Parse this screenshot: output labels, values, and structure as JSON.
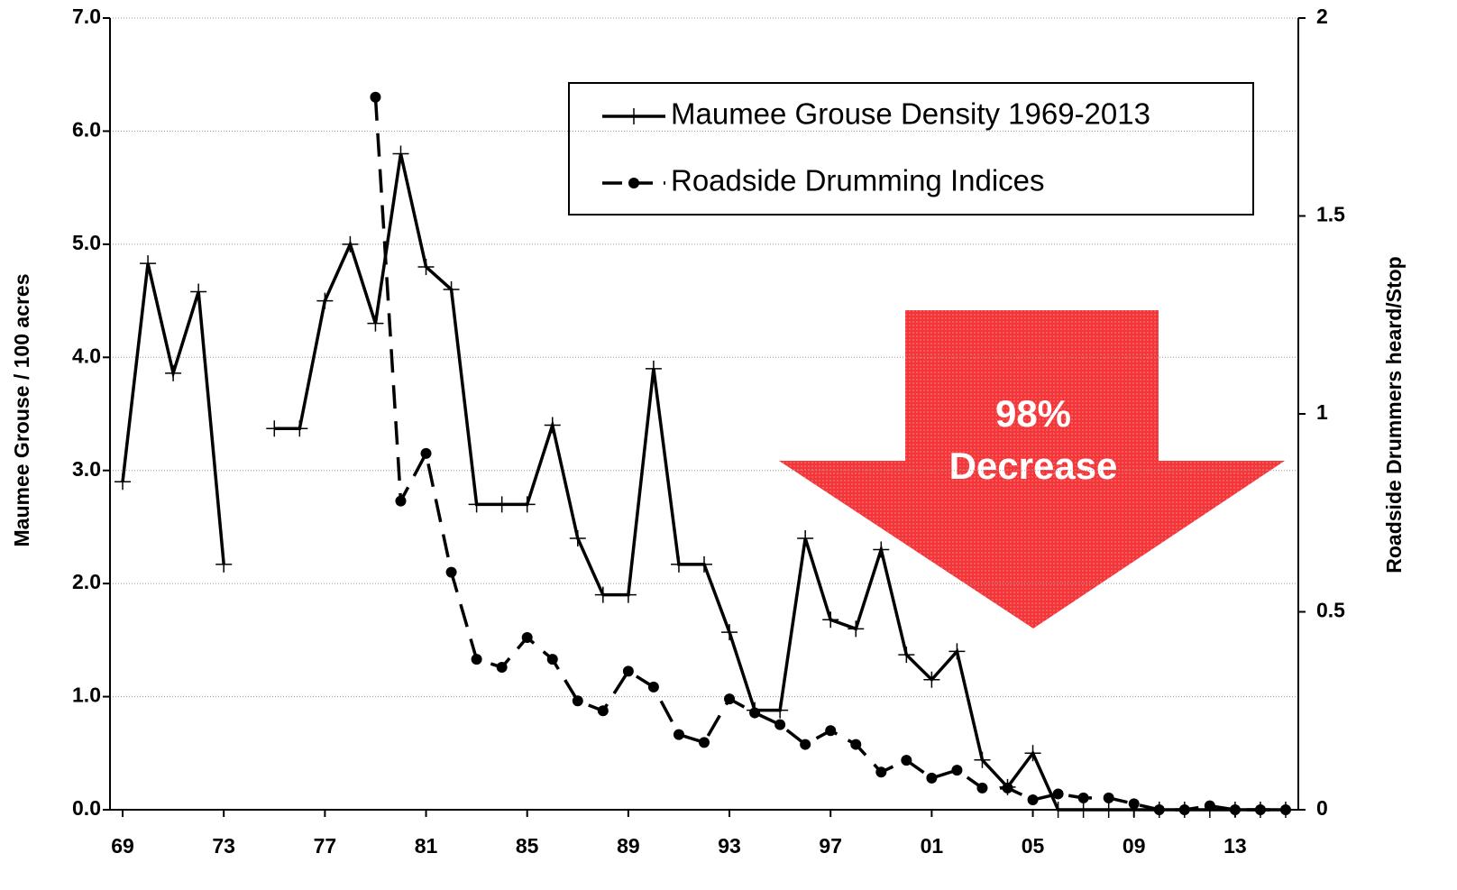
{
  "chart_data": {
    "type": "line",
    "x": [
      1969,
      1970,
      1971,
      1972,
      1973,
      1974,
      1975,
      1976,
      1977,
      1978,
      1979,
      1980,
      1981,
      1982,
      1983,
      1984,
      1985,
      1986,
      1987,
      1988,
      1989,
      1990,
      1991,
      1992,
      1993,
      1994,
      1995,
      1996,
      1997,
      1998,
      1999,
      2000,
      2001,
      2002,
      2003,
      2004,
      2005,
      2006,
      2007,
      2008,
      2009,
      2010,
      2011,
      2012,
      2013,
      2014,
      2015
    ],
    "series": [
      {
        "name": "Maumee Grouse Density 1969-2013",
        "color": "#000000",
        "style": "solid",
        "marker": "plus",
        "values": [
          2.9,
          4.83,
          3.86,
          4.58,
          2.17,
          null,
          3.37,
          3.37,
          4.5,
          5.0,
          4.3,
          5.8,
          4.8,
          4.6,
          2.7,
          2.7,
          2.7,
          3.4,
          2.4,
          1.9,
          1.9,
          3.9,
          2.17,
          2.17,
          1.57,
          0.88,
          0.88,
          2.4,
          1.68,
          1.6,
          2.3,
          1.37,
          1.15,
          1.4,
          0.44,
          0.2,
          0.5,
          0,
          0,
          0,
          0,
          0,
          0,
          0,
          0,
          0,
          0
        ]
      },
      {
        "name": "Roadside Drumming Indices",
        "color": "#000000",
        "style": "dashed",
        "marker": "circle",
        "axis": "y2",
        "values": [
          null,
          null,
          null,
          null,
          null,
          null,
          null,
          null,
          null,
          null,
          1.8,
          0.78,
          0.9,
          0.6,
          0.38,
          0.36,
          0.435,
          0.38,
          0.275,
          0.25,
          0.35,
          0.31,
          0.19,
          0.17,
          0.28,
          0.245,
          0.215,
          0.165,
          0.2,
          0.165,
          0.095,
          0.125,
          0.08,
          0.1,
          0.055,
          0.055,
          0.025,
          0.04,
          0.03,
          0.03,
          0.015,
          0,
          0,
          0.01,
          0,
          0,
          0
        ]
      }
    ],
    "xlim": [
      1968.5,
      2015.5
    ],
    "xticks": [
      {
        "value": 1969,
        "label": "69"
      },
      {
        "value": 1973,
        "label": "73"
      },
      {
        "value": 1977,
        "label": "77"
      },
      {
        "value": 1981,
        "label": "81"
      },
      {
        "value": 1985,
        "label": "85"
      },
      {
        "value": 1989,
        "label": "89"
      },
      {
        "value": 1993,
        "label": "93"
      },
      {
        "value": 1997,
        "label": "97"
      },
      {
        "value": 2001,
        "label": "01"
      },
      {
        "value": 2005,
        "label": "05"
      },
      {
        "value": 2009,
        "label": "09"
      },
      {
        "value": 2013,
        "label": "13"
      }
    ],
    "ylim": [
      0,
      7
    ],
    "yticks": [
      {
        "value": 0,
        "label": "0.0"
      },
      {
        "value": 1,
        "label": "1.0"
      },
      {
        "value": 2,
        "label": "2.0"
      },
      {
        "value": 3,
        "label": "3.0"
      },
      {
        "value": 4,
        "label": "4.0"
      },
      {
        "value": 5,
        "label": "5.0"
      },
      {
        "value": 6,
        "label": "6.0"
      },
      {
        "value": 7,
        "label": "7.0"
      }
    ],
    "y2lim": [
      0,
      2
    ],
    "y2ticks": [
      0,
      0.5,
      1,
      1.5,
      2
    ],
    "ylabel": "Maumee Grouse / 100 acres",
    "y2label": "Roadside Drummers heard/Stop",
    "annotation": [
      "98%",
      "Decrease"
    ],
    "grid": true,
    "legend": "upper right"
  }
}
